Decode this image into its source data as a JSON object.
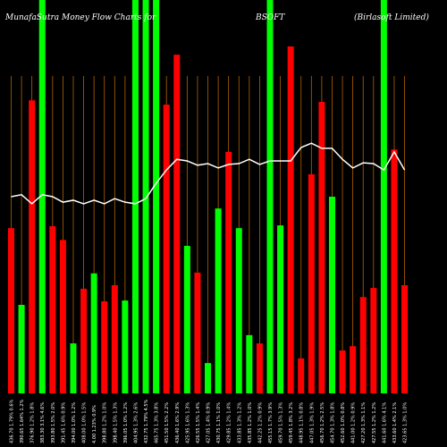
{
  "chart_data": {
    "type": "bar",
    "title": "MunafaSutra  Money Flow  Charts for",
    "ticker": "BSOFT",
    "company": "(Birlasoft Limited)",
    "categories": [
      "436.70 1.79% 0.6%",
      "390.65 1.64% 1.2%",
      "376.90 1.2% 1.8%",
      "383.30 3.1% 4.6%",
      "393.80 1.5% 2.0%",
      "391.45 1.6% 0.9%",
      "394.00 1.0% 1.2%",
      "408.00 1.0% 1.5%",
      "4.00 1.23% 0.9%",
      "398.80 1.2% 1.0%",
      "398.40 1.5% 1.3%",
      "396.05 1.0% 1.2%",
      "404.95 1.3% 2.6%",
      "432.75 1.79% 4.5%",
      "465.75 1.3% 3.8%",
      "451.50 1.5% 2.2%",
      "436.40 1.6% 2.9%",
      "425.95 1.6% 1.3%",
      "426.55 1.5% 1.4%",
      "427.05 1.4% 0.9%",
      "430.75 1.1% 1.0%",
      "429.85 1.2% 1.4%",
      "433.85 1.3% 1.2%",
      "435.85 1.2% 1.0%",
      "442.25 1.2% 0.9%",
      "455.15 1.7% 3.9%",
      "459.70 1.5% 1.3%",
      "459.45 1.8% 3.2%",
      "448.95 1.1% 0.8%",
      "447.05 1.3% 1.9%",
      "456.70 1.2% 2.5%",
      "454.70 1.3% 1.8%",
      "452.60 1.0% 0.8%",
      "441.00 1.2% 0.9%",
      "427.20 1.3% 1.1%",
      "427.55 1.2% 1.2%",
      "441.60 1.6% 4.1%",
      "433.60 1.4% 2.1%",
      "423.65 1.3% 1.0%"
    ],
    "values": [
      42,
      22.5,
      74.5,
      100,
      42.5,
      39,
      12.7,
      26.6,
      30.5,
      23.4,
      27.5,
      23.6,
      100,
      100,
      100,
      73.4,
      86.1,
      37.5,
      30.7,
      7.7,
      47,
      61.4,
      42,
      14.8,
      12.7,
      100,
      42.7,
      88.2,
      8.9,
      55.7,
      74.1,
      50,
      10.9,
      12,
      24.5,
      26.8,
      100,
      62,
      27.5
    ],
    "bar_colors": [
      "#ff0000",
      "#00ff00",
      "#ff0000",
      "#00ff00",
      "#ff0000",
      "#ff0000",
      "#00ff00",
      "#ff0000",
      "#00ff00",
      "#ff0000",
      "#ff0000",
      "#00ff00",
      "#00ff00",
      "#00ff00",
      "#00ff00",
      "#ff0000",
      "#ff0000",
      "#00ff00",
      "#ff0000",
      "#00ff00",
      "#00ff00",
      "#ff0000",
      "#00ff00",
      "#00ff00",
      "#ff0000",
      "#00ff00",
      "#00ff00",
      "#ff0000",
      "#ff0000",
      "#ff0000",
      "#ff0000",
      "#00ff00",
      "#ff0000",
      "#ff0000",
      "#ff0000",
      "#ff0000",
      "#00ff00",
      "#ff0000",
      "#ff0000"
    ],
    "line": {
      "color": "#ffffff",
      "values": [
        50,
        50.5,
        48.2,
        50.5,
        50,
        48.6,
        49.1,
        48.2,
        49.1,
        48.2,
        49.5,
        48.6,
        48.2,
        49.5,
        53.4,
        56.8,
        59.5,
        59.1,
        58,
        58.4,
        57.3,
        58.2,
        58.4,
        59.5,
        58.2,
        59.1,
        59.1,
        59.1,
        62.5,
        63.6,
        62.3,
        62.3,
        59.5,
        57.3,
        58.6,
        58.4,
        56.8,
        61.4,
        56.8
      ]
    },
    "ylim": [
      0,
      100
    ],
    "gridline_color": "#b36200"
  }
}
